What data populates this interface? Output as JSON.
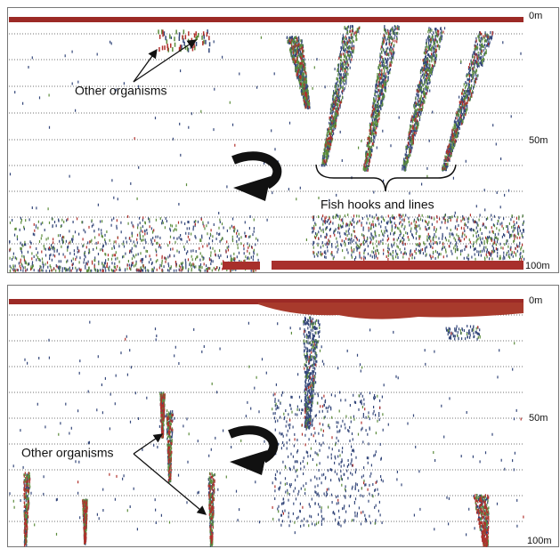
{
  "panels": [
    {
      "depth_labels": [
        "0m",
        "50m",
        "100m"
      ],
      "annotations": [
        "Other organisms",
        "Fish hooks and lines"
      ]
    },
    {
      "depth_labels": [
        "0m",
        "50m",
        "100m"
      ],
      "annotations": [
        "Other organisms"
      ]
    }
  ]
}
